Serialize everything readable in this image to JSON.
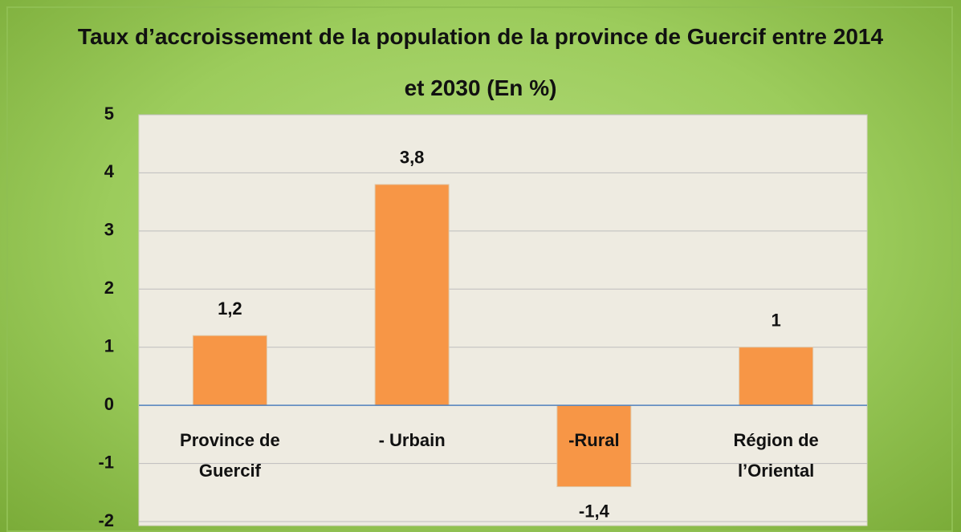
{
  "chart_data": {
    "type": "bar",
    "title": "Taux d’accroissement de la population de la province de Guercif entre 2014 et 2030 (En %)",
    "categories": [
      "Province de Guercif",
      "- Urbain",
      "-Rural",
      "Région de l’Oriental"
    ],
    "values": [
      1.2,
      3.8,
      -1.4,
      1
    ],
    "value_labels": [
      "1,2",
      "3,8",
      "-1,4",
      "1"
    ],
    "color": "#f79646",
    "ylim": [
      -2,
      5
    ],
    "yticks": [
      -2,
      -1,
      0,
      1,
      2,
      3,
      4,
      5
    ],
    "grid": true
  }
}
